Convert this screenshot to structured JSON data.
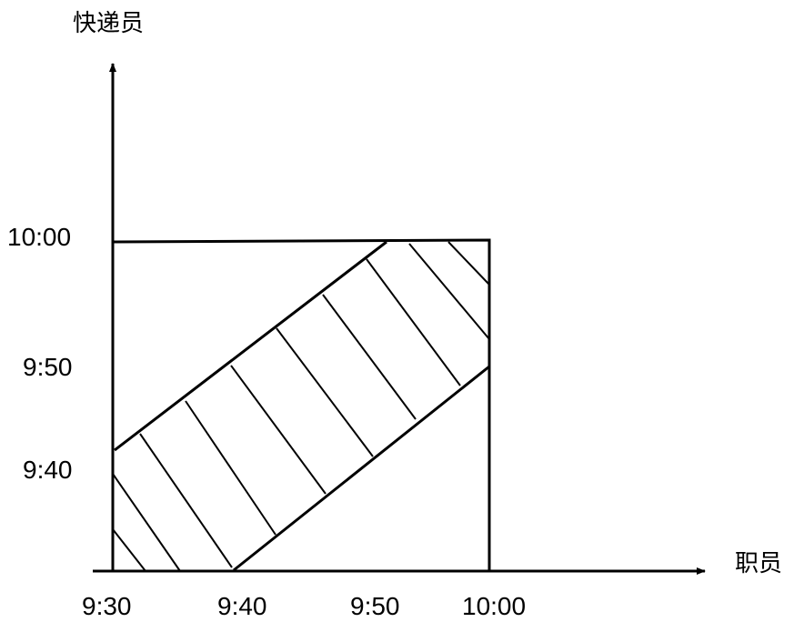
{
  "diagram": {
    "type": "meeting-probability-region",
    "x_axis_title": "职员",
    "y_axis_title": "快递员",
    "x_ticks": [
      {
        "label": "9:30",
        "value": 0
      },
      {
        "label": "9:40",
        "value": 10
      },
      {
        "label": "9:50",
        "value": 20
      },
      {
        "label": "10:00",
        "value": 30
      }
    ],
    "y_ticks": [
      {
        "label": "9:40",
        "value": 10
      },
      {
        "label": "9:50",
        "value": 20
      },
      {
        "label": "10:00",
        "value": 30
      }
    ],
    "square_range": [
      0,
      30
    ],
    "band_boundaries": [
      {
        "name": "upper-boundary",
        "from": [
          0,
          11
        ],
        "to": [
          25,
          30
        ]
      },
      {
        "name": "lower-boundary",
        "from": [
          9,
          0
        ],
        "to": [
          30,
          18
        ]
      }
    ],
    "hatch_color": "#000000",
    "line_color": "#000000"
  }
}
